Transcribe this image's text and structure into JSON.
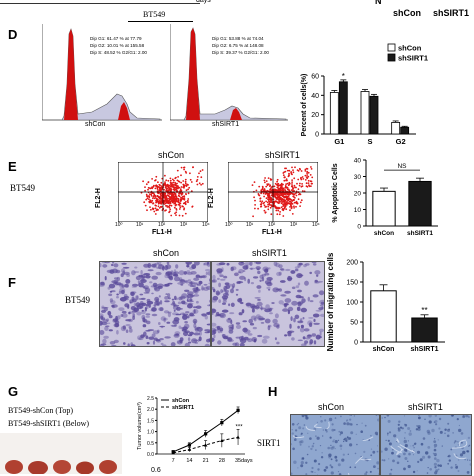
{
  "top_fragment": {
    "days": "days",
    "y_fragment": "N",
    "shcon": "shCon",
    "shsirt1": "shSIRT1"
  },
  "panel_d": {
    "letter": "D",
    "cell_line": "BT549",
    "hist_shcon": {
      "label": "shCon",
      "stats": [
        "Dip G1: 61.47 % at 77.79",
        "Dip G2: 10.01 % at 155.58",
        "Dip S: 48.52 %     G2/G1: 2.00"
      ]
    },
    "hist_shsirt1": {
      "label": "shSIRT1",
      "stats": [
        "Dip G1: 53.88 % at 74.04",
        "Dip G2: 6.75 % at 148.08",
        "Dip S: 39.37 %     G2/G1: 2.00"
      ]
    },
    "colors": {
      "shcon": "#ffffff",
      "shsirt1": "#1a1a1a",
      "peak": "#d01010",
      "fill": "#c8c8e0"
    }
  },
  "chart_data": [
    {
      "type": "bar",
      "panel": "D",
      "categories": [
        "G1",
        "S",
        "G2"
      ],
      "series": [
        {
          "name": "shCon",
          "values": [
            43,
            44,
            12
          ],
          "errors": [
            2,
            2,
            1.5
          ]
        },
        {
          "name": "shSIRT1",
          "values": [
            54,
            39,
            7
          ],
          "errors": [
            2,
            2,
            1
          ]
        }
      ],
      "ylabel": "Percent of cells(%)",
      "yticks": [
        0,
        20,
        40,
        60
      ],
      "ylim": [
        0,
        60
      ],
      "sig": [
        "*",
        "",
        ""
      ],
      "legend": "top-right"
    },
    {
      "type": "bar",
      "panel": "E",
      "categories": [
        "shCon",
        "shSIRT1"
      ],
      "values": [
        21,
        27
      ],
      "errors": [
        2,
        2
      ],
      "ylabel": "% Apoptotic Cells",
      "yticks": [
        0,
        10,
        20,
        30,
        40
      ],
      "ylim": [
        0,
        40
      ],
      "annotation": "NS"
    },
    {
      "type": "bar",
      "panel": "F",
      "categories": [
        "shCon",
        "shSIRT1"
      ],
      "values": [
        128,
        60
      ],
      "errors": [
        15,
        8
      ],
      "ylabel": "Number of migrating cells",
      "yticks": [
        0,
        50,
        100,
        150,
        200
      ],
      "ylim": [
        0,
        200
      ],
      "annotation": "**"
    },
    {
      "type": "line",
      "panel": "G",
      "x": [
        7,
        14,
        21,
        28,
        35
      ],
      "series": [
        {
          "name": "shCon",
          "values": [
            0.1,
            0.4,
            0.9,
            1.4,
            1.95
          ],
          "errors": [
            0.05,
            0.1,
            0.15,
            0.15,
            0.15
          ]
        },
        {
          "name": "shSIRT1",
          "values": [
            0.05,
            0.2,
            0.4,
            0.6,
            0.75
          ],
          "errors": [
            0.05,
            0.1,
            0.2,
            0.3,
            0.35
          ]
        }
      ],
      "ylabel": "Tumor volume(cm³)",
      "xunit": "days",
      "yticks": [
        0.0,
        0.5,
        1.0,
        1.5,
        2.0,
        2.5
      ],
      "ylim": [
        0,
        2.5
      ],
      "annotation": "***",
      "legend": "top-left"
    }
  ],
  "panel_e": {
    "letter": "E",
    "cell_line": "BT549",
    "title_a": "shCon",
    "title_b": "shSIRT1",
    "y_axis": "FL2-H",
    "x_axis": "FL1-H",
    "ticks_a": [
      "10⁰",
      "10¹",
      "10²",
      "10³",
      "10⁴"
    ],
    "colors": {
      "dots": "#e01818"
    }
  },
  "panel_f": {
    "letter": "F",
    "cell_line": "BT549",
    "title_a": "shCon",
    "title_b": "shSIRT1",
    "colors": {
      "bg": "#c9c4dd",
      "stain": "#5a4a9a"
    }
  },
  "panel_g": {
    "letter": "G",
    "caption_1": "BT549-shCon (Top)",
    "caption_2": "BT549-shSIRT1 (Below)",
    "bottom_tick": "0.6",
    "colors": {
      "tumor": "#b04030"
    }
  },
  "panel_h": {
    "letter": "H",
    "title_a": "shCon",
    "title_b": "shSIRT1",
    "row_label": "SIRT1",
    "colors": {
      "ihc": "#8fa7cf"
    }
  }
}
